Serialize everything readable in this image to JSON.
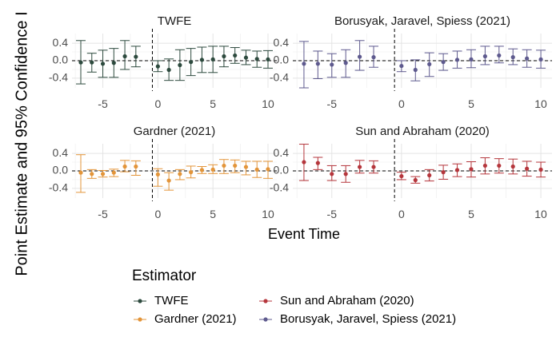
{
  "chart_data": {
    "type": "scatter",
    "subtype": "event-study-errorbar-facets",
    "ylabel": "Point Estimate and 95% Confidence I",
    "xlabel": "Event Time",
    "xlim": [
      -7.8,
      10.8
    ],
    "ylim": [
      -0.62,
      0.62
    ],
    "x_ticks": [
      -5,
      0,
      5,
      10
    ],
    "y_ticks": [
      0.4,
      0.0,
      -0.4
    ],
    "y_tick_labels": [
      "0.4",
      "0.0",
      "-0.4"
    ],
    "reference_vline_x": -0.5,
    "reference_hline_y": 0,
    "grid": true,
    "legend": {
      "title": "Estimator",
      "placement": "bottom",
      "entries": [
        {
          "name": "TWFE",
          "color": "#2d4a3e"
        },
        {
          "name": "Gardner (2021)",
          "color": "#e3953a"
        },
        {
          "name": "Sun and Abraham (2020)",
          "color": "#b5363c"
        },
        {
          "name": "Borusyak, Jaravel, Spiess (2021)",
          "color": "#5e5a8e"
        }
      ]
    },
    "panels": [
      {
        "title": "TWFE",
        "color": "#2d4a3e",
        "x": [
          -7,
          -6,
          -5,
          -4,
          -3,
          -2,
          0,
          1,
          2,
          3,
          4,
          5,
          6,
          7,
          8,
          9,
          10
        ],
        "y": [
          -0.04,
          -0.04,
          -0.07,
          -0.05,
          0.1,
          0.09,
          -0.13,
          -0.21,
          -0.1,
          -0.03,
          0.02,
          0.03,
          0.1,
          0.12,
          0.07,
          0.04,
          0.03
        ],
        "ci_low": [
          -0.53,
          -0.26,
          -0.38,
          -0.38,
          -0.2,
          -0.14,
          -0.25,
          -0.45,
          -0.45,
          -0.34,
          -0.27,
          -0.27,
          -0.14,
          -0.06,
          -0.09,
          -0.15,
          -0.17
        ],
        "ci_high": [
          0.46,
          0.17,
          0.24,
          0.28,
          0.46,
          0.33,
          0.0,
          0.04,
          0.25,
          0.28,
          0.31,
          0.33,
          0.33,
          0.3,
          0.24,
          0.22,
          0.23
        ]
      },
      {
        "title": "Borusyak, Jaravel, Spiess (2021)",
        "color": "#5e5a8e",
        "x": [
          -7,
          -6,
          -5,
          -4,
          -3,
          -2,
          0,
          1,
          2,
          3,
          4,
          5,
          6,
          7,
          8,
          9,
          10
        ],
        "y": [
          -0.07,
          -0.07,
          -0.09,
          -0.05,
          0.09,
          0.08,
          -0.12,
          -0.21,
          -0.08,
          -0.03,
          0.02,
          0.03,
          0.1,
          0.12,
          0.08,
          0.05,
          0.03
        ],
        "ci_low": [
          -0.62,
          -0.41,
          -0.38,
          -0.38,
          -0.22,
          -0.15,
          -0.25,
          -0.46,
          -0.36,
          -0.22,
          -0.17,
          -0.16,
          -0.09,
          -0.05,
          -0.09,
          -0.15,
          -0.17
        ],
        "ci_high": [
          0.44,
          0.22,
          0.16,
          0.25,
          0.46,
          0.33,
          0.0,
          0.02,
          0.18,
          0.16,
          0.22,
          0.25,
          0.33,
          0.33,
          0.27,
          0.25,
          0.24
        ]
      },
      {
        "title": "Gardner (2021)",
        "color": "#e3953a",
        "x": [
          -7,
          -6,
          -5,
          -4,
          -3,
          -2,
          0,
          1,
          2,
          3,
          4,
          5,
          6,
          7,
          8,
          9,
          10
        ],
        "y": [
          -0.04,
          -0.07,
          -0.07,
          -0.04,
          0.1,
          0.1,
          -0.08,
          -0.22,
          -0.07,
          -0.03,
          0.02,
          0.03,
          0.12,
          0.12,
          0.09,
          0.03,
          0.04
        ],
        "ci_low": [
          -0.49,
          -0.17,
          -0.14,
          -0.13,
          -0.02,
          -0.1,
          -0.35,
          -0.44,
          -0.2,
          -0.16,
          -0.06,
          -0.06,
          -0.06,
          -0.04,
          -0.09,
          -0.15,
          -0.17
        ],
        "ci_high": [
          0.37,
          0.03,
          0.01,
          0.04,
          0.24,
          0.23,
          0.05,
          -0.04,
          0.03,
          0.11,
          0.1,
          0.14,
          0.26,
          0.25,
          0.22,
          0.22,
          0.22
        ]
      },
      {
        "title": "Sun and Abraham (2020)",
        "color": "#b5363c",
        "x": [
          -7,
          -6,
          -5,
          -4,
          -3,
          -2,
          0,
          1,
          2,
          3,
          4,
          5,
          6,
          7,
          8,
          9,
          10
        ],
        "y": [
          0.2,
          0.18,
          -0.07,
          -0.07,
          0.09,
          0.09,
          -0.12,
          -0.21,
          -0.1,
          -0.03,
          0.02,
          0.04,
          0.12,
          0.12,
          0.1,
          0.05,
          0.03
        ],
        "ci_low": [
          -0.22,
          0.03,
          -0.22,
          -0.26,
          -0.05,
          -0.05,
          -0.2,
          -0.28,
          -0.23,
          -0.19,
          -0.13,
          -0.14,
          -0.07,
          -0.05,
          -0.07,
          -0.12,
          -0.14
        ],
        "ci_high": [
          0.61,
          0.31,
          0.12,
          0.12,
          0.24,
          0.23,
          -0.03,
          -0.13,
          0.03,
          0.13,
          0.16,
          0.21,
          0.3,
          0.28,
          0.27,
          0.22,
          0.2
        ]
      }
    ]
  }
}
